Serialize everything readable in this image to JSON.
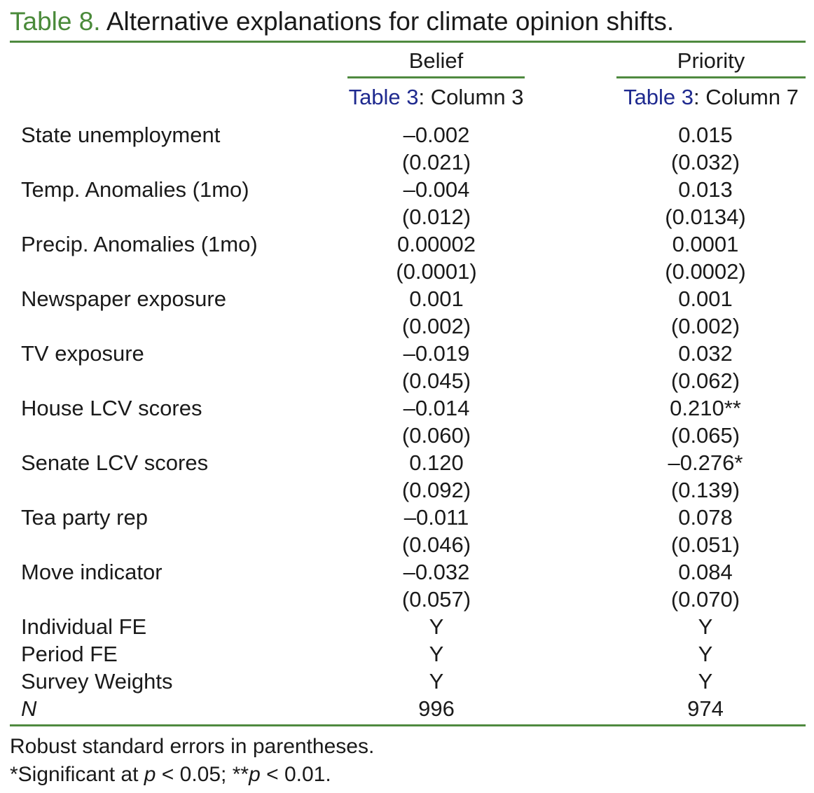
{
  "caption": {
    "label": "Table 8.",
    "text": " Alternative explanations for climate opinion shifts."
  },
  "columns": [
    {
      "header": "Belief",
      "ref_link": "Table 3",
      "ref_rest": ": Column 3"
    },
    {
      "header": "Priority",
      "ref_link": "Table 3",
      "ref_rest": ": Column 7"
    }
  ],
  "rows": [
    {
      "label": "State unemployment",
      "v1": "–0.002",
      "v2": "0.015"
    },
    {
      "label": "",
      "v1": "(0.021)",
      "v2": "(0.032)"
    },
    {
      "label": "Temp. Anomalies (1mo)",
      "v1": "–0.004",
      "v2": "0.013"
    },
    {
      "label": "",
      "v1": "(0.012)",
      "v2": "(0.0134)"
    },
    {
      "label": "Precip. Anomalies (1mo)",
      "v1": "0.00002",
      "v2": "0.0001"
    },
    {
      "label": "",
      "v1": "(0.0001)",
      "v2": "(0.0002)"
    },
    {
      "label": "Newspaper exposure",
      "v1": "0.001",
      "v2": "0.001"
    },
    {
      "label": "",
      "v1": "(0.002)",
      "v2": "(0.002)"
    },
    {
      "label": "TV exposure",
      "v1": "–0.019",
      "v2": "0.032"
    },
    {
      "label": "",
      "v1": "(0.045)",
      "v2": "(0.062)"
    },
    {
      "label": "House LCV scores",
      "v1": "–0.014",
      "v2": "0.210**"
    },
    {
      "label": "",
      "v1": "(0.060)",
      "v2": "(0.065)"
    },
    {
      "label": "Senate LCV scores",
      "v1": "0.120",
      "v2": "–0.276*"
    },
    {
      "label": "",
      "v1": "(0.092)",
      "v2": "(0.139)"
    },
    {
      "label": "Tea party rep",
      "v1": "–0.011",
      "v2": "0.078"
    },
    {
      "label": "",
      "v1": "(0.046)",
      "v2": "(0.051)"
    },
    {
      "label": "Move indicator",
      "v1": "–0.032",
      "v2": "0.084"
    },
    {
      "label": "",
      "v1": "(0.057)",
      "v2": "(0.070)"
    },
    {
      "label": "Individual FE",
      "v1": "Y",
      "v2": "Y"
    },
    {
      "label": "Period FE",
      "v1": "Y",
      "v2": "Y"
    },
    {
      "label": "Survey Weights",
      "v1": "Y",
      "v2": "Y"
    },
    {
      "label": "N",
      "v1": "996",
      "v2": "974"
    }
  ],
  "notes": {
    "line1": "Robust standard errors in parentheses.",
    "line2_a": "*Significant at ",
    "line2_p1": "p",
    "line2_b": " < 0.05; **",
    "line2_p2": "p",
    "line2_c": " < 0.01."
  },
  "colors": {
    "rule": "#4f8a3f",
    "caption_label": "#4a8a3a",
    "ref_link": "#1f2a8f"
  }
}
